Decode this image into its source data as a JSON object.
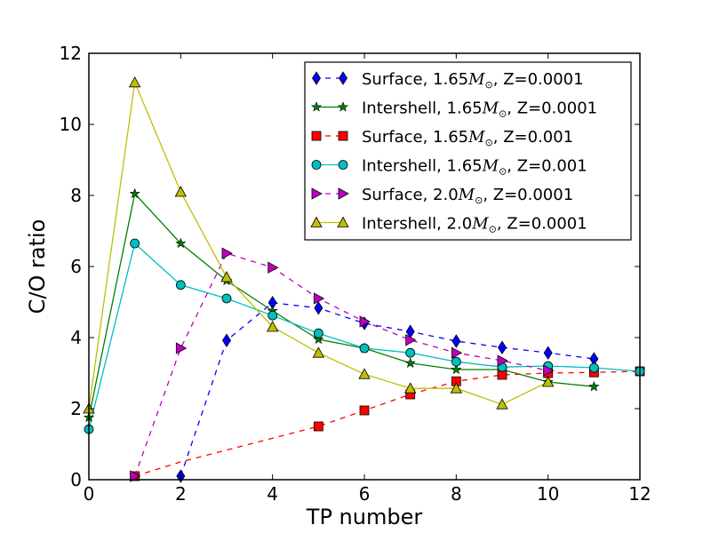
{
  "chart_data": {
    "type": "line",
    "title": "",
    "xlabel": "TP number",
    "ylabel": "C/O ratio",
    "xlim": [
      0,
      12
    ],
    "ylim": [
      0,
      12
    ],
    "xticks": [
      "0",
      "2",
      "4",
      "6",
      "8",
      "10",
      "12"
    ],
    "yticks": [
      "0",
      "2",
      "4",
      "6",
      "8",
      "10",
      "12"
    ],
    "grid": false,
    "legend_position": "top-right",
    "series": [
      {
        "name": "Surface, 1.65M☉, Z=0.0001",
        "legend": {
          "prefix": "Surface, 1.65",
          "mass": "M",
          "suffix": ", Z=0.0001"
        },
        "color": "#0000ff",
        "marker": "diamond",
        "linestyle": "dashed",
        "x": [
          2,
          3,
          4,
          5,
          6,
          7,
          8,
          9,
          10,
          11
        ],
        "y": [
          0.1,
          3.92,
          4.98,
          4.83,
          4.4,
          4.17,
          3.9,
          3.72,
          3.57,
          3.4
        ]
      },
      {
        "name": "Intershell, 1.65M☉, Z=0.0001",
        "legend": {
          "prefix": "Intershell, 1.65",
          "mass": "M",
          "suffix": ", Z=0.0001"
        },
        "color": "#007f00",
        "marker": "star",
        "linestyle": "solid",
        "x": [
          0,
          1,
          2,
          3,
          4,
          5,
          6,
          7,
          8,
          9,
          10,
          11
        ],
        "y": [
          1.75,
          8.05,
          6.65,
          5.6,
          4.75,
          3.95,
          3.7,
          3.28,
          3.1,
          3.1,
          2.75,
          2.62
        ]
      },
      {
        "name": "Surface, 1.65M☉, Z=0.001",
        "legend": {
          "prefix": "Surface, 1.65",
          "mass": "M",
          "suffix": ", Z=0.001"
        },
        "color": "#ff0000",
        "marker": "square",
        "linestyle": "dashed",
        "x": [
          1,
          2,
          5,
          6,
          7,
          8,
          9,
          10,
          11,
          12
        ],
        "y": [
          0.1,
          0.5,
          1.5,
          1.95,
          2.4,
          2.77,
          2.95,
          3.0,
          3.02,
          3.05
        ],
        "unmarked_x": [
          2
        ]
      },
      {
        "name": "Intershell, 1.65M☉, Z=0.001",
        "legend": {
          "prefix": "Intershell, 1.65",
          "mass": "M",
          "suffix": ", Z=0.001"
        },
        "color": "#00bfbf",
        "marker": "circle",
        "linestyle": "solid",
        "x": [
          0,
          1,
          2,
          3,
          4,
          5,
          6,
          7,
          8,
          9,
          10,
          11,
          12
        ],
        "y": [
          1.42,
          6.65,
          5.48,
          5.1,
          4.62,
          4.12,
          3.7,
          3.57,
          3.32,
          3.17,
          3.2,
          3.15,
          3.05
        ]
      },
      {
        "name": "Surface, 2.0M☉, Z=0.0001",
        "legend": {
          "prefix": "Surface, 2.0",
          "mass": "M",
          "suffix": ", Z=0.0001"
        },
        "color": "#bf00bf",
        "marker": "triangle-right",
        "linestyle": "dashed",
        "x": [
          1,
          2,
          3,
          4,
          5,
          6,
          7,
          8,
          9,
          10
        ],
        "y": [
          0.1,
          3.7,
          6.37,
          5.97,
          5.1,
          4.45,
          3.93,
          3.57,
          3.35,
          3.07
        ]
      },
      {
        "name": "Intershell, 2.0M☉, Z=0.0001",
        "legend": {
          "prefix": "Intershell, 2.0",
          "mass": "M",
          "suffix": ", Z=0.0001"
        },
        "color": "#bfbf00",
        "marker": "triangle-up",
        "linestyle": "solid",
        "x": [
          0,
          1,
          2,
          3,
          4,
          5,
          6,
          7,
          8,
          9,
          10
        ],
        "y": [
          2.0,
          11.18,
          8.1,
          5.7,
          4.3,
          3.57,
          2.97,
          2.57,
          2.57,
          2.12,
          2.75
        ]
      }
    ]
  }
}
